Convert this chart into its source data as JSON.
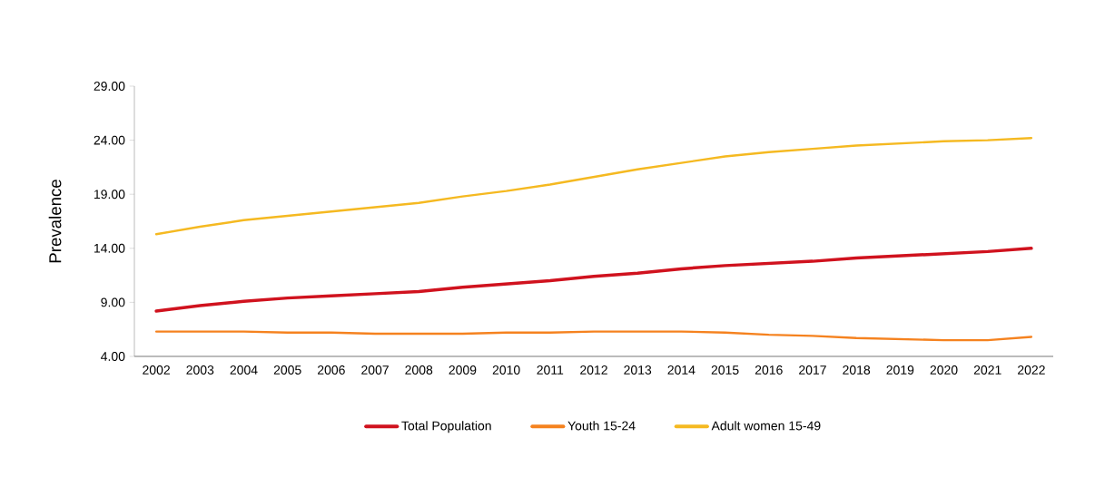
{
  "chart_data": {
    "type": "line",
    "ylabel": "Prevalence",
    "categories": [
      "2002",
      "2003",
      "2004",
      "2005",
      "2006",
      "2007",
      "2008",
      "2009",
      "2010",
      "2011",
      "2012",
      "2013",
      "2014",
      "2015",
      "2016",
      "2017",
      "2018",
      "2019",
      "2020",
      "2021",
      "2022"
    ],
    "series": [
      {
        "name": "Total Population",
        "color": "#d0121e",
        "values": [
          8.2,
          8.7,
          9.1,
          9.4,
          9.6,
          9.8,
          10.0,
          10.4,
          10.7,
          11.0,
          11.4,
          11.7,
          12.1,
          12.4,
          12.6,
          12.8,
          13.1,
          13.3,
          13.5,
          13.7,
          14.0
        ]
      },
      {
        "name": "Youth 15-24",
        "color": "#f5821f",
        "values": [
          6.3,
          6.3,
          6.3,
          6.2,
          6.2,
          6.1,
          6.1,
          6.1,
          6.2,
          6.2,
          6.3,
          6.3,
          6.3,
          6.2,
          6.0,
          5.9,
          5.7,
          5.6,
          5.5,
          5.5,
          5.8
        ]
      },
      {
        "name": "Adult women 15-49",
        "color": "#f5b921",
        "values": [
          15.3,
          16.0,
          16.6,
          17.0,
          17.4,
          17.8,
          18.2,
          18.8,
          19.3,
          19.9,
          20.6,
          21.3,
          21.9,
          22.5,
          22.9,
          23.2,
          23.5,
          23.7,
          23.9,
          24.0,
          24.2
        ]
      }
    ],
    "ylim": [
      4,
      29
    ],
    "yticks": [
      {
        "value": 4,
        "label": "4.00"
      },
      {
        "value": 9,
        "label": "9.00"
      },
      {
        "value": 14,
        "label": "14.00"
      },
      {
        "value": 19,
        "label": "19.00"
      },
      {
        "value": 24,
        "label": "24.00"
      },
      {
        "value": 29,
        "label": "29.00"
      }
    ],
    "grid": false,
    "legend": "bottom",
    "marker": "none",
    "line_style": "solid"
  }
}
